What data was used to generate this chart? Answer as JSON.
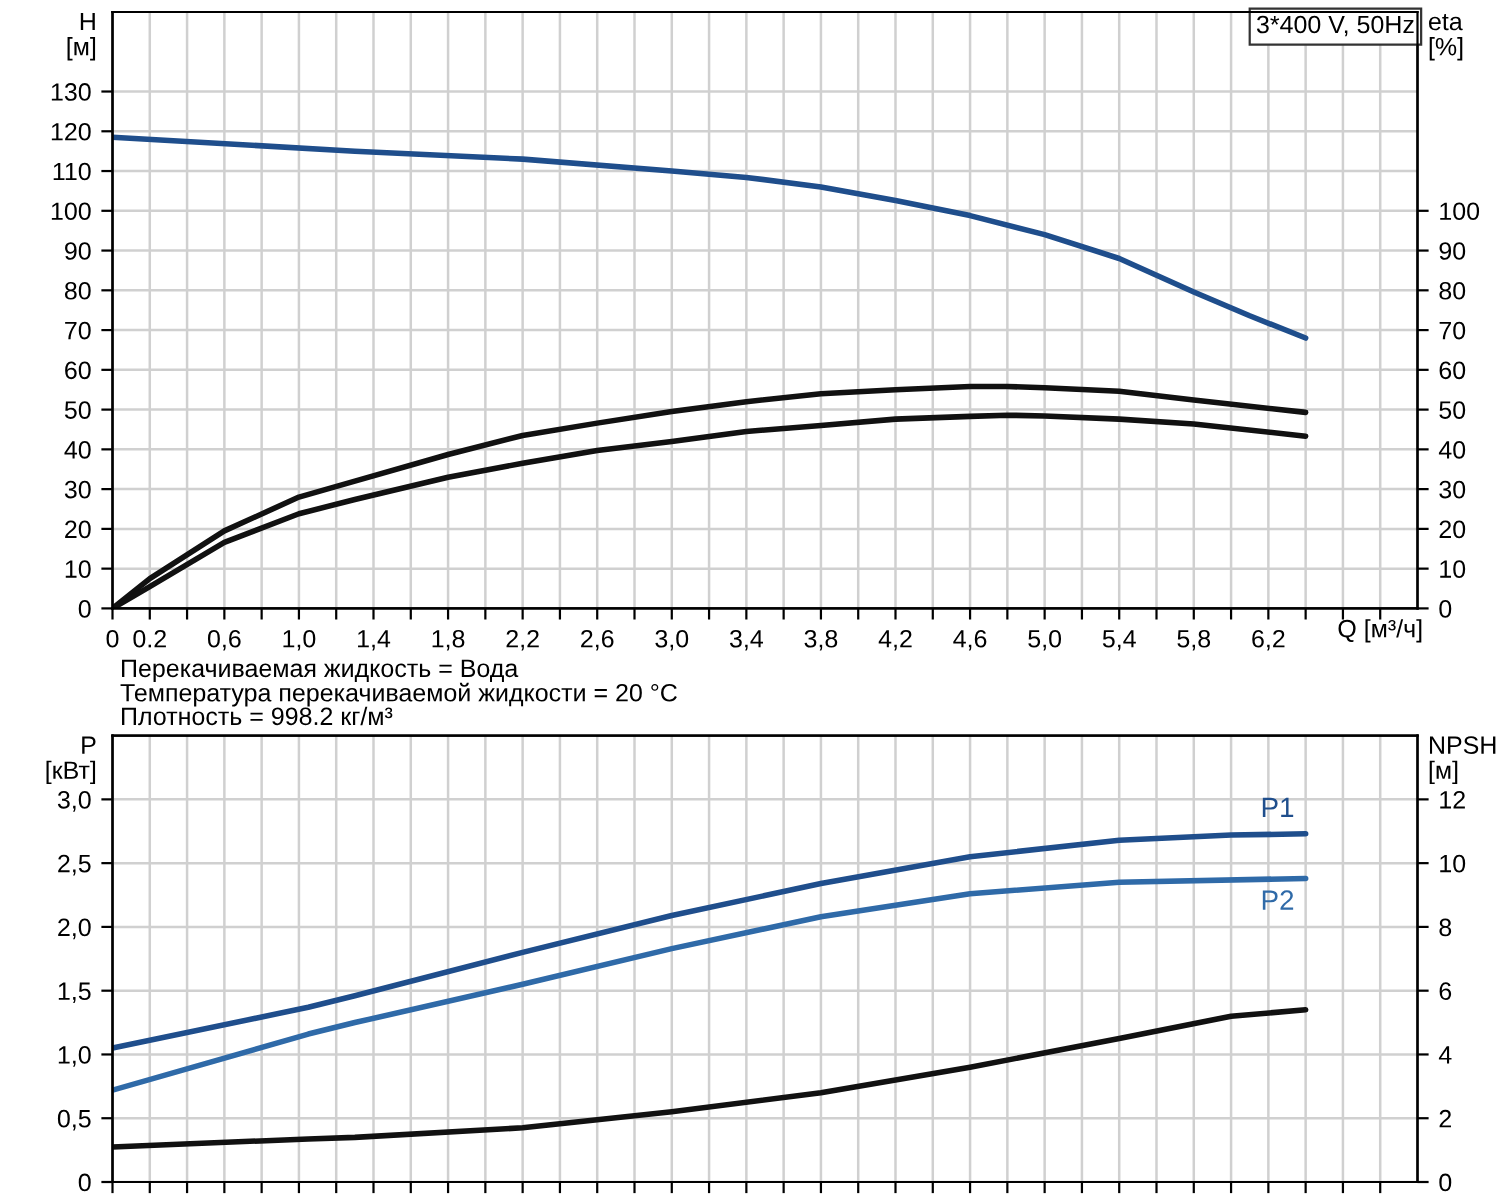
{
  "chart_data": [
    {
      "type": "line",
      "ylabel": "H\n[м]",
      "y2label": "eta\n[%]",
      "xlabel": "Q [м³/ч]",
      "subtitle": "3*400 V, 50Hz",
      "annotations": [
        "Перекачиваемая жидкость = Вода",
        "Температура перекачиваемой жидкости = 20 °C",
        "Плотность = 998.2 кг/м³"
      ],
      "xlim": [
        0,
        7.0
      ],
      "ylim": [
        0,
        150
      ],
      "y2lim": [
        0,
        150
      ],
      "xticks": [
        0,
        0.2,
        {
          "value": 0.4,
          "label": null
        },
        {
          "value": 0.6,
          "label": "0,6"
        },
        {
          "value": 0.8,
          "label": null
        },
        {
          "value": 1.0,
          "label": "1,0"
        },
        {
          "value": 1.2,
          "label": null
        },
        {
          "value": 1.4,
          "label": "1,4"
        },
        {
          "value": 1.6,
          "label": null
        },
        {
          "value": 1.8,
          "label": "1,8"
        },
        {
          "value": 2.0,
          "label": null
        },
        {
          "value": 2.2,
          "label": "2,2"
        },
        {
          "value": 2.4,
          "label": null
        },
        {
          "value": 2.6,
          "label": "2,6"
        },
        {
          "value": 2.8,
          "label": null
        },
        {
          "value": 3.0,
          "label": "3,0"
        },
        {
          "value": 3.2,
          "label": null
        },
        {
          "value": 3.4,
          "label": "3,4"
        },
        {
          "value": 3.6,
          "label": null
        },
        {
          "value": 3.8,
          "label": "3,8"
        },
        {
          "value": 4.0,
          "label": null
        },
        {
          "value": 4.2,
          "label": "4,2"
        },
        {
          "value": 4.4,
          "label": null
        },
        {
          "value": 4.6,
          "label": "4,6"
        },
        {
          "value": 4.8,
          "label": null
        },
        {
          "value": 5.0,
          "label": "5,0"
        },
        {
          "value": 5.2,
          "label": null
        },
        {
          "value": 5.4,
          "label": "5,4"
        },
        {
          "value": 5.6,
          "label": null
        },
        {
          "value": 5.8,
          "label": "5,8"
        },
        {
          "value": 6.0,
          "label": null
        },
        {
          "value": 6.2,
          "label": "6,2"
        },
        {
          "value": 6.4,
          "label": null
        },
        {
          "value": 6.6,
          "label": null
        },
        {
          "value": 6.8,
          "label": null
        }
      ],
      "yticks": [
        0,
        10,
        20,
        30,
        40,
        50,
        60,
        70,
        80,
        90,
        100,
        110,
        120,
        130
      ],
      "y2ticks": [
        0,
        10,
        20,
        30,
        40,
        50,
        60,
        70,
        80,
        90,
        100
      ],
      "grid": true,
      "legend": false,
      "marker": "none",
      "line_style": "solid",
      "series": [
        {
          "color": "#1f4e8c",
          "axis": "y",
          "x": [
            0,
            1.3,
            2.2,
            3.0,
            3.4,
            3.8,
            4.2,
            4.6,
            5.0,
            5.4,
            5.8,
            6.1,
            6.4
          ],
          "values": [
            118.5,
            115,
            113,
            110,
            108.4,
            106,
            102.6,
            98.8,
            94,
            88,
            79.6,
            73.6,
            68
          ]
        },
        {
          "color": "#111111",
          "axis": "y2",
          "x": [
            0,
            0.2,
            0.6,
            1.0,
            1.3,
            1.8,
            2.2,
            2.6,
            3.0,
            3.4,
            3.8,
            4.2,
            4.6,
            4.8,
            5.0,
            5.4,
            5.8,
            6.4
          ],
          "values": [
            0,
            7.5,
            19.5,
            28,
            32,
            38.7,
            43.5,
            46.6,
            49.5,
            52,
            54,
            55,
            55.8,
            55.8,
            55.5,
            54.6,
            52.4,
            49.3
          ]
        },
        {
          "color": "#111111",
          "axis": "y2",
          "x": [
            0,
            0.2,
            0.6,
            1.0,
            1.3,
            1.8,
            2.2,
            2.6,
            3.0,
            3.4,
            3.8,
            4.2,
            4.6,
            4.8,
            5.0,
            5.4,
            5.8,
            6.4
          ],
          "values": [
            0,
            5.5,
            16.6,
            23.8,
            27.4,
            33,
            36.5,
            39.7,
            42,
            44.5,
            46,
            47.6,
            48.3,
            48.6,
            48.4,
            47.6,
            46.4,
            43.3
          ]
        }
      ]
    },
    {
      "type": "line",
      "ylabel": "P\n[кВт]",
      "y2label": "NPSH\n[м]",
      "xlim": [
        0,
        7.0
      ],
      "ylim": [
        0,
        3.5
      ],
      "y2lim": [
        0,
        14
      ],
      "tick_labels": "y",
      "xticks": [
        0,
        0.2,
        0.4,
        0.6,
        0.8,
        1.0,
        1.2,
        1.4,
        1.6,
        1.8,
        2.0,
        2.2,
        2.4,
        2.6,
        2.8,
        3.0,
        3.2,
        3.4,
        3.6,
        3.8,
        4.0,
        4.2,
        4.4,
        4.6,
        4.8,
        5.0,
        5.2,
        5.4,
        5.6,
        5.8,
        6.0,
        6.2,
        6.4,
        6.6,
        6.8
      ],
      "yticks": [
        0,
        {
          "value": 0.5,
          "label": "0,5"
        },
        {
          "value": 1.0,
          "label": "1,0"
        },
        {
          "value": 1.5,
          "label": "1,5"
        },
        {
          "value": 2.0,
          "label": "2,0"
        },
        {
          "value": 2.5,
          "label": "2,5"
        },
        {
          "value": 3.0,
          "label": "3,0"
        }
      ],
      "y2ticks": [
        0,
        2,
        4,
        6,
        8,
        10,
        12
      ],
      "grid": true,
      "legend": false,
      "marker": "none",
      "line_style": "solid",
      "series": [
        {
          "name": "P1",
          "color": "#1f4e8c",
          "axis": "y",
          "x": [
            0,
            1.05,
            1.3,
            2.2,
            3.0,
            3.8,
            4.6,
            5.4,
            6.0,
            6.4
          ],
          "values": [
            1.05,
            1.37,
            1.46,
            1.8,
            2.09,
            2.34,
            2.55,
            2.68,
            2.72,
            2.73
          ]
        },
        {
          "name": "P2",
          "color": "#2f6aa8",
          "axis": "y",
          "x": [
            0,
            1.05,
            1.3,
            2.2,
            3.0,
            3.8,
            4.6,
            5.4,
            6.4
          ],
          "values": [
            0.72,
            1.16,
            1.25,
            1.55,
            1.83,
            2.08,
            2.26,
            2.35,
            2.38
          ]
        },
        {
          "color": "#111111",
          "axis": "y2",
          "x": [
            0,
            1.05,
            1.3,
            2.2,
            3.0,
            3.8,
            4.6,
            5.4,
            6.0,
            6.4
          ],
          "values": [
            1.1,
            1.35,
            1.4,
            1.7,
            2.2,
            2.8,
            3.6,
            4.5,
            5.2,
            5.4
          ]
        }
      ]
    }
  ]
}
